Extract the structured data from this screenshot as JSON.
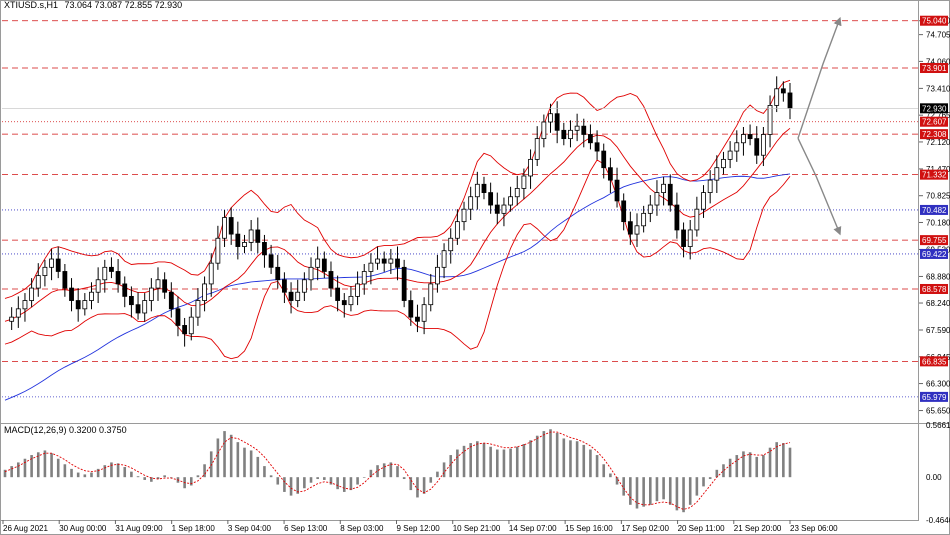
{
  "header": {
    "symbol": "XTIUSD.s,H1",
    "ohlc": "73.064 73.087 72.855 72.930"
  },
  "macd_header": {
    "label": "MACD(12,26,9) 0.3200 0.3750"
  },
  "colors": {
    "candles": "#000000",
    "bollinger": "#e00000",
    "ma": "#2233dd",
    "level_red": "#d01010",
    "level_blue": "#3030c0",
    "macd_hist": "#808080",
    "macd_signal": "#e00000",
    "arrow": "#888888",
    "current_price_bg": "#000000"
  },
  "chart_data": [
    {
      "type": "candlestick",
      "symbol": "XTIUSD.s",
      "timeframe": "H1",
      "ylim": [
        65.35,
        75.25
      ],
      "y_ticks": [
        "75.040",
        "74.705",
        "74.060",
        "73.410",
        "72.765",
        "72.120",
        "71.470",
        "70.825",
        "70.180",
        "69.530",
        "68.880",
        "68.240",
        "67.590",
        "66.945",
        "66.300",
        "65.650"
      ],
      "x_ticks": [
        "26 Aug 2021",
        "30 Aug 00:00",
        "31 Aug 09:00",
        "1 Sep 18:00",
        "3 Sep 04:00",
        "6 Sep 13:00",
        "8 Sep 03:00",
        "9 Sep 12:00",
        "10 Sep 21:00",
        "14 Sep 07:00",
        "15 Sep 16:00",
        "17 Sep 02:00",
        "20 Sep 11:00",
        "21 Sep 20:00",
        "23 Sep 06:00"
      ],
      "levels": [
        {
          "label": "75.040",
          "price": 75.04,
          "color": "red",
          "style": "dashed"
        },
        {
          "label": "73.901",
          "price": 73.901,
          "color": "red",
          "style": "dashed"
        },
        {
          "label": "72.607",
          "price": 72.607,
          "color": "red",
          "style": "dotted"
        },
        {
          "label": "72.308",
          "price": 72.308,
          "color": "red",
          "style": "dashed"
        },
        {
          "label": "71.332",
          "price": 71.332,
          "color": "red",
          "style": "dashed"
        },
        {
          "label": "70.482",
          "price": 70.482,
          "color": "blue",
          "style": "dotted"
        },
        {
          "label": "69.755",
          "price": 69.755,
          "color": "red",
          "style": "dashed"
        },
        {
          "label": "69.422",
          "price": 69.422,
          "color": "blue",
          "style": "dotted"
        },
        {
          "label": "68.578",
          "price": 68.578,
          "color": "red",
          "style": "dashed"
        },
        {
          "label": "66.835",
          "price": 66.835,
          "color": "red",
          "style": "dashed"
        },
        {
          "label": "65.979",
          "price": 65.979,
          "color": "blue",
          "style": "dotted"
        }
      ],
      "current_price": "72.930",
      "price_series": [
        67.8,
        67.9,
        68.1,
        68.3,
        68.6,
        68.9,
        69.1,
        69.3,
        69.0,
        68.6,
        68.3,
        68.1,
        68.3,
        68.5,
        68.8,
        69.1,
        69.0,
        68.7,
        68.4,
        68.2,
        68.0,
        68.3,
        68.6,
        68.8,
        68.5,
        68.1,
        67.7,
        67.5,
        67.9,
        68.3,
        68.7,
        69.2,
        69.8,
        70.3,
        69.9,
        69.6,
        69.7,
        70.0,
        69.7,
        69.4,
        69.1,
        68.8,
        68.5,
        68.3,
        68.5,
        68.8,
        69.1,
        69.3,
        69.0,
        68.6,
        68.3,
        68.2,
        68.4,
        68.7,
        69.0,
        69.2,
        69.3,
        69.2,
        69.3,
        69.1,
        68.3,
        67.9,
        67.8,
        68.2,
        68.7,
        69.1,
        69.5,
        69.8,
        70.2,
        70.5,
        70.8,
        71.1,
        70.9,
        70.6,
        70.4,
        70.6,
        70.8,
        71.0,
        71.3,
        71.7,
        72.2,
        72.6,
        72.8,
        72.4,
        72.2,
        72.4,
        72.5,
        72.3,
        72.1,
        71.9,
        71.5,
        71.2,
        70.7,
        70.2,
        69.9,
        70.1,
        70.4,
        70.6,
        70.9,
        71.1,
        70.6,
        70.0,
        69.6,
        70.0,
        70.5,
        70.9,
        71.2,
        71.5,
        71.7,
        71.9,
        72.1,
        72.3,
        72.2,
        71.8,
        72.3,
        73.0,
        73.4,
        73.3,
        72.93
      ],
      "indicators": [
        "Bollinger Bands",
        "Moving Average"
      ]
    },
    {
      "type": "bar",
      "indicator": "MACD(12,26,9)",
      "values_label": "0.3200 0.3750",
      "ylim": [
        -0.4646,
        0.5661
      ],
      "y_ticks": [
        "0.5661",
        "0.00",
        "-0.4646"
      ],
      "histogram": [
        0.08,
        0.12,
        0.16,
        0.2,
        0.24,
        0.27,
        0.29,
        0.26,
        0.2,
        0.14,
        0.09,
        0.05,
        0.03,
        0.05,
        0.09,
        0.13,
        0.16,
        0.15,
        0.11,
        0.06,
        0.01,
        -0.03,
        -0.05,
        -0.02,
        0.02,
        0.0,
        -0.06,
        -0.12,
        -0.09,
        0.02,
        0.14,
        0.28,
        0.42,
        0.5,
        0.46,
        0.38,
        0.32,
        0.29,
        0.22,
        0.12,
        0.02,
        -0.08,
        -0.16,
        -0.2,
        -0.18,
        -0.12,
        -0.06,
        -0.02,
        -0.03,
        -0.08,
        -0.13,
        -0.16,
        -0.14,
        -0.08,
        0.0,
        0.08,
        0.13,
        0.15,
        0.16,
        0.12,
        -0.02,
        -0.14,
        -0.22,
        -0.18,
        -0.06,
        0.06,
        0.16,
        0.24,
        0.3,
        0.34,
        0.37,
        0.39,
        0.37,
        0.33,
        0.3,
        0.3,
        0.31,
        0.33,
        0.36,
        0.4,
        0.45,
        0.5,
        0.52,
        0.48,
        0.42,
        0.4,
        0.39,
        0.35,
        0.3,
        0.24,
        0.14,
        0.04,
        -0.08,
        -0.2,
        -0.3,
        -0.34,
        -0.32,
        -0.3,
        -0.26,
        -0.24,
        -0.3,
        -0.36,
        -0.38,
        -0.3,
        -0.2,
        -0.1,
        -0.02,
        0.08,
        0.14,
        0.2,
        0.24,
        0.28,
        0.27,
        0.22,
        0.24,
        0.32,
        0.38,
        0.37,
        0.32
      ],
      "signal": [
        0.06,
        0.09,
        0.12,
        0.16,
        0.2,
        0.23,
        0.26,
        0.26,
        0.23,
        0.19,
        0.14,
        0.1,
        0.07,
        0.06,
        0.07,
        0.1,
        0.13,
        0.14,
        0.13,
        0.1,
        0.06,
        0.02,
        -0.01,
        -0.02,
        -0.01,
        -0.01,
        -0.03,
        -0.06,
        -0.07,
        -0.04,
        0.03,
        0.13,
        0.26,
        0.38,
        0.43,
        0.42,
        0.38,
        0.34,
        0.29,
        0.22,
        0.13,
        0.04,
        -0.05,
        -0.12,
        -0.16,
        -0.15,
        -0.11,
        -0.07,
        -0.05,
        -0.06,
        -0.09,
        -0.12,
        -0.13,
        -0.11,
        -0.06,
        0.01,
        0.07,
        0.11,
        0.14,
        0.14,
        0.08,
        -0.03,
        -0.13,
        -0.17,
        -0.13,
        -0.05,
        0.05,
        0.14,
        0.22,
        0.28,
        0.33,
        0.36,
        0.37,
        0.36,
        0.34,
        0.32,
        0.32,
        0.33,
        0.35,
        0.38,
        0.42,
        0.46,
        0.49,
        0.49,
        0.46,
        0.43,
        0.41,
        0.38,
        0.34,
        0.28,
        0.2,
        0.1,
        -0.01,
        -0.12,
        -0.22,
        -0.28,
        -0.3,
        -0.3,
        -0.28,
        -0.27,
        -0.28,
        -0.32,
        -0.35,
        -0.33,
        -0.27,
        -0.18,
        -0.09,
        0.0,
        0.07,
        0.13,
        0.18,
        0.23,
        0.25,
        0.24,
        0.24,
        0.28,
        0.33,
        0.36,
        0.375
      ]
    }
  ]
}
